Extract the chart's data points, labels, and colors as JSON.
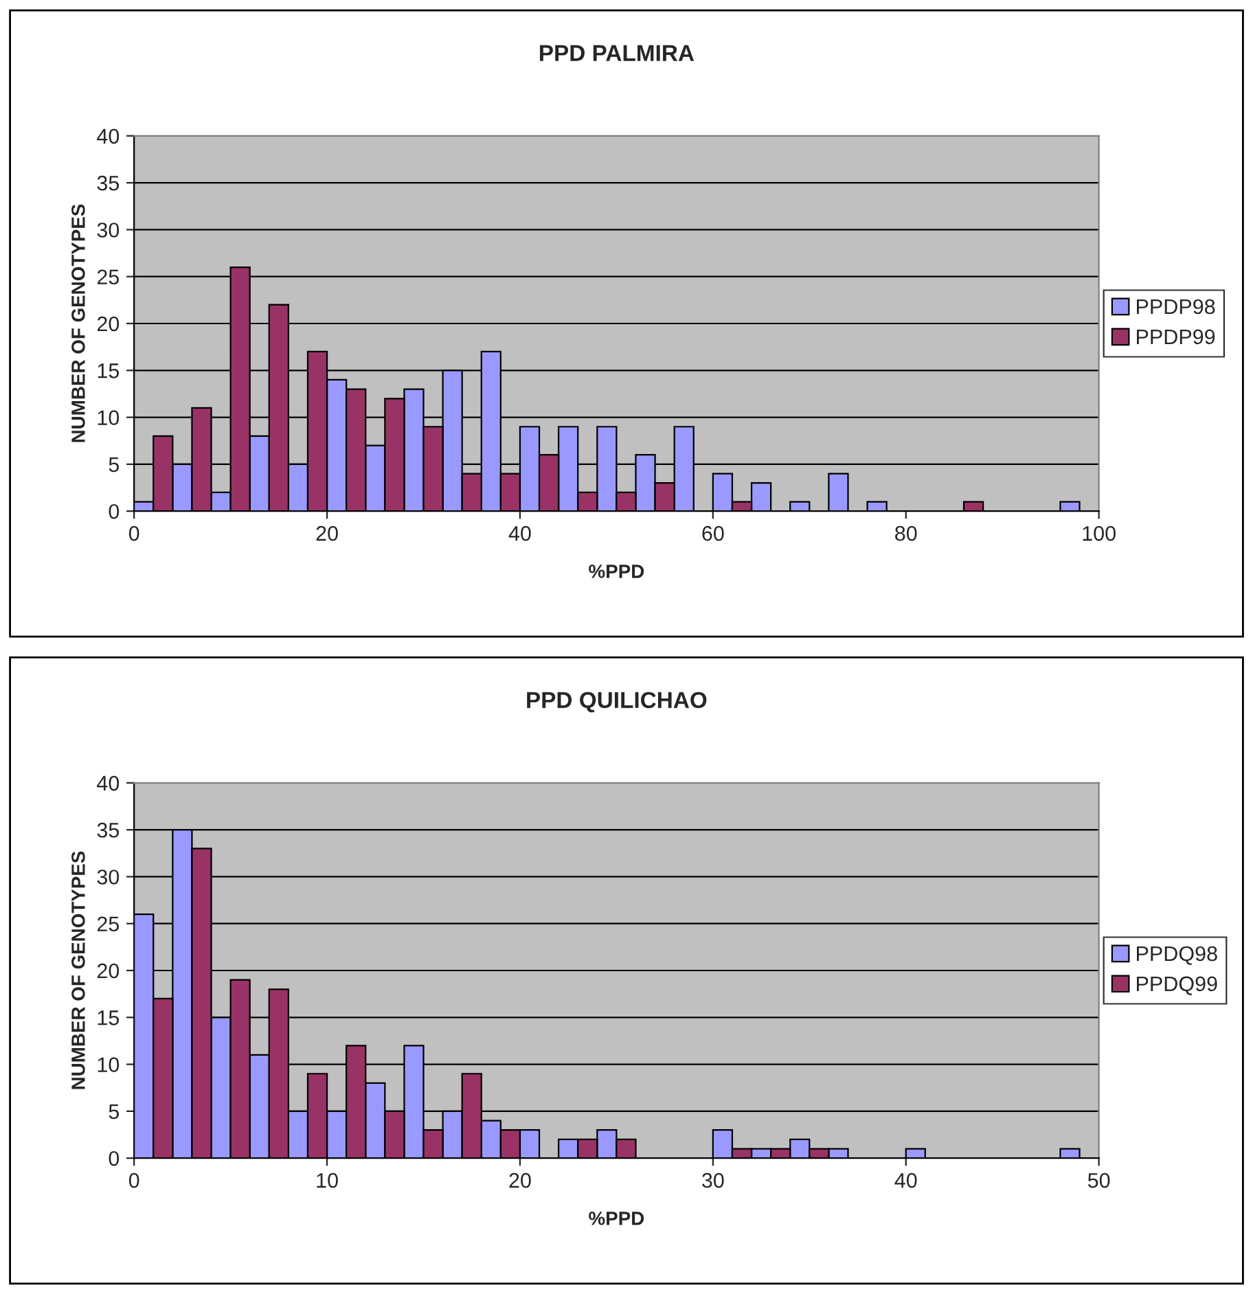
{
  "chart_data": [
    {
      "type": "bar",
      "title": "PPD PALMIRA",
      "xlabel": "%PPD",
      "ylabel": "NUMBER OF GENOTYPES",
      "xlim": [
        0,
        100
      ],
      "xticks": [
        0,
        20,
        40,
        60,
        80,
        100
      ],
      "ylim": [
        0,
        40
      ],
      "yticks": [
        0,
        5,
        10,
        15,
        20,
        25,
        30,
        35,
        40
      ],
      "grid": "y",
      "legend": "right",
      "series": [
        {
          "name": "PPDP98",
          "color": "#9999ff",
          "x": [
            1,
            5,
            9,
            13,
            17,
            21,
            25,
            29,
            33,
            37,
            41,
            45,
            49,
            53,
            57,
            61,
            65,
            69,
            73,
            77,
            81,
            85,
            89,
            93,
            97
          ],
          "values": [
            1,
            5,
            2,
            8,
            5,
            14,
            7,
            13,
            15,
            17,
            9,
            9,
            9,
            6,
            9,
            4,
            3,
            1,
            4,
            1,
            0,
            0,
            0,
            0,
            1
          ]
        },
        {
          "name": "PPDP99",
          "color": "#993366",
          "x": [
            3,
            7,
            11,
            15,
            19,
            23,
            27,
            31,
            35,
            39,
            43,
            47,
            51,
            55,
            59,
            63,
            67,
            71,
            75,
            79,
            83,
            87,
            91,
            95,
            99
          ],
          "values": [
            8,
            11,
            26,
            22,
            17,
            13,
            12,
            9,
            4,
            4,
            6,
            2,
            2,
            3,
            0,
            1,
            0,
            0,
            0,
            0,
            0,
            1,
            0,
            0,
            0
          ]
        }
      ]
    },
    {
      "type": "bar",
      "title": "PPD QUILICHAO",
      "xlabel": "%PPD",
      "ylabel": "NUMBER OF GENOTYPES",
      "xlim": [
        0,
        50
      ],
      "xticks": [
        0,
        10,
        20,
        30,
        40,
        50
      ],
      "ylim": [
        0,
        40
      ],
      "yticks": [
        0,
        5,
        10,
        15,
        20,
        25,
        30,
        35,
        40
      ],
      "grid": "y",
      "legend": "right",
      "series": [
        {
          "name": "PPDQ98",
          "color": "#9999ff",
          "x": [
            0.5,
            2.5,
            4.5,
            6.5,
            8.5,
            10.5,
            12.5,
            14.5,
            16.5,
            18.5,
            20.5,
            22.5,
            24.5,
            26.5,
            28.5,
            30.5,
            32.5,
            34.5,
            36.5,
            38.5,
            40.5,
            42.5,
            44.5,
            46.5,
            48.5
          ],
          "values": [
            26,
            35,
            15,
            11,
            5,
            5,
            8,
            12,
            5,
            4,
            3,
            2,
            3,
            0,
            0,
            3,
            1,
            2,
            1,
            0,
            1,
            0,
            0,
            0,
            1
          ]
        },
        {
          "name": "PPDQ99",
          "color": "#993366",
          "x": [
            1.5,
            3.5,
            5.5,
            7.5,
            9.5,
            11.5,
            13.5,
            15.5,
            17.5,
            19.5,
            21.5,
            23.5,
            25.5,
            27.5,
            29.5,
            31.5,
            33.5,
            35.5,
            37.5,
            39.5,
            41.5,
            43.5,
            45.5,
            47.5,
            49.5
          ],
          "values": [
            17,
            33,
            19,
            18,
            9,
            12,
            5,
            3,
            9,
            3,
            0,
            2,
            2,
            0,
            0,
            1,
            1,
            1,
            0,
            0,
            0,
            0,
            0,
            0,
            0
          ]
        }
      ]
    }
  ]
}
